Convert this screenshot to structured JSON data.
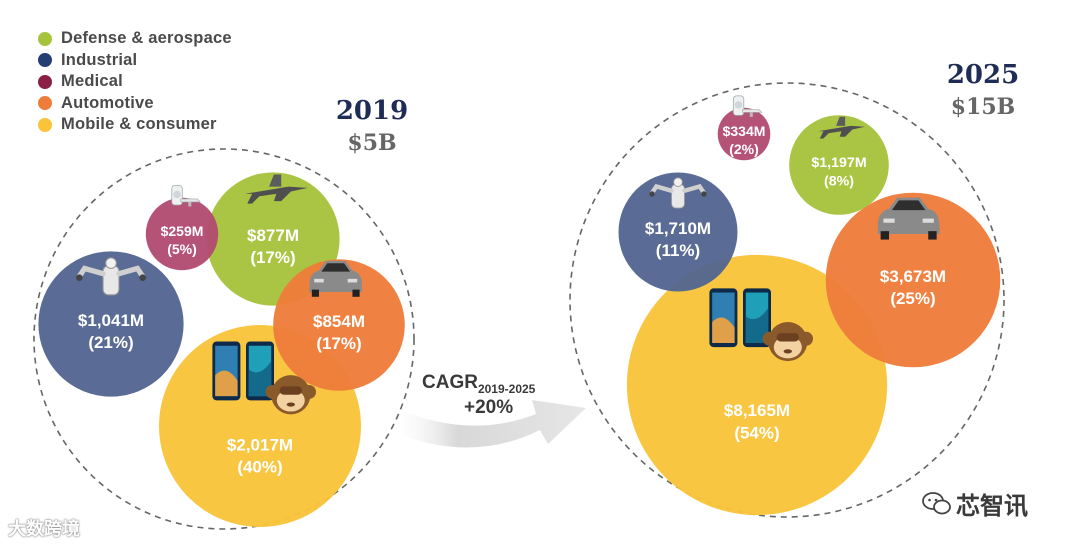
{
  "legend": [
    {
      "label": "Defense & aerospace",
      "color": "#a5c33b"
    },
    {
      "label": "Industrial",
      "color": "#263f73"
    },
    {
      "label": "Medical",
      "color": "#8c1f45"
    },
    {
      "label": "Automotive",
      "color": "#ee7d3b"
    },
    {
      "label": "Mobile & consumer",
      "color": "#f9c43a"
    }
  ],
  "cagr": {
    "label": "CAGR",
    "sub": "2019-2025",
    "value": "+20%"
  },
  "watermarks": {
    "left": "大数跨境",
    "right": "芯智讯"
  },
  "chart_data": [
    {
      "type": "bubble",
      "year": "2019",
      "total": "$5B",
      "bubbles": [
        {
          "segment": "Mobile & consumer",
          "value_label": "$2,017M",
          "share_label": "(40%)",
          "value_musd": 2017,
          "share_pct": 40,
          "color": "#f9c43a",
          "icon": "smartphones-monkey-emoji-icon"
        },
        {
          "segment": "Industrial",
          "value_label": "$1,041M",
          "share_label": "(21%)",
          "value_musd": 1041,
          "share_pct": 21,
          "color": "#536691",
          "icon": "robot-arms-icon"
        },
        {
          "segment": "Defense & aerospace",
          "value_label": "$877M",
          "share_label": "(17%)",
          "value_musd": 877,
          "share_pct": 17,
          "color": "#a5c33b",
          "icon": "fighter-jet-icon"
        },
        {
          "segment": "Automotive",
          "value_label": "$854M",
          "share_label": "(17%)",
          "value_musd": 854,
          "share_pct": 17,
          "color": "#ee7d3b",
          "icon": "car-icon"
        },
        {
          "segment": "Medical",
          "value_label": "$259M",
          "share_label": "(5%)",
          "value_musd": 259,
          "share_pct": 5,
          "color": "#b24c70",
          "icon": "ct-scanner-icon"
        }
      ]
    },
    {
      "type": "bubble",
      "year": "2025",
      "total": "$15B",
      "bubbles": [
        {
          "segment": "Mobile & consumer",
          "value_label": "$8,165M",
          "share_label": "(54%)",
          "value_musd": 8165,
          "share_pct": 54,
          "color": "#f9c43a",
          "icon": "smartphones-monkey-emoji-icon"
        },
        {
          "segment": "Automotive",
          "value_label": "$3,673M",
          "share_label": "(25%)",
          "value_musd": 3673,
          "share_pct": 25,
          "color": "#ee7d3b",
          "icon": "car-icon"
        },
        {
          "segment": "Industrial",
          "value_label": "$1,710M",
          "share_label": "(11%)",
          "value_musd": 1710,
          "share_pct": 11,
          "color": "#536691",
          "icon": "robot-arms-icon"
        },
        {
          "segment": "Defense & aerospace",
          "value_label": "$1,197M",
          "share_label": "(8%)",
          "value_musd": 1197,
          "share_pct": 8,
          "color": "#a5c33b",
          "icon": "fighter-jet-icon"
        },
        {
          "segment": "Medical",
          "value_label": "$334M",
          "share_label": "(2%)",
          "value_musd": 334,
          "share_pct": 2,
          "color": "#b24c70",
          "icon": "ct-scanner-icon"
        }
      ]
    }
  ]
}
